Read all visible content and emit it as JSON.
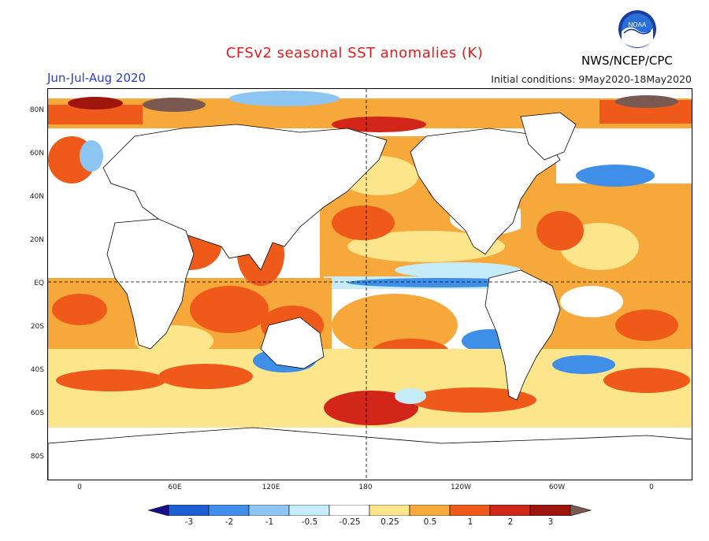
{
  "header": {
    "title": "CFSv2 seasonal SST anomalies (K)",
    "season": "Jun-Jul-Aug 2020",
    "initial_conditions": "Initial conditions: 9May2020-18May2020",
    "agency": "NWS/NCEP/CPC",
    "logo_text": "NOAA"
  },
  "axes": {
    "lat_labels": [
      "80N",
      "60N",
      "40N",
      "20N",
      "EQ",
      "20S",
      "40S",
      "60S",
      "80S"
    ],
    "lon_labels": [
      "0",
      "60E",
      "120E",
      "180",
      "120W",
      "60W",
      "0"
    ]
  },
  "colorbar": {
    "labels": [
      "-3",
      "-2",
      "-1",
      "-0.5",
      "-0.25",
      "0.25",
      "0.5",
      "1",
      "2",
      "3"
    ],
    "colors": [
      "#1a0f8a",
      "#1e5fd6",
      "#3f8fe8",
      "#8cc4f2",
      "#c6ecfa",
      "#ffffff",
      "#fde58c",
      "#f7a83a",
      "#ef5a1a",
      "#d2261a",
      "#a0140e",
      "#7a5a50"
    ]
  }
}
